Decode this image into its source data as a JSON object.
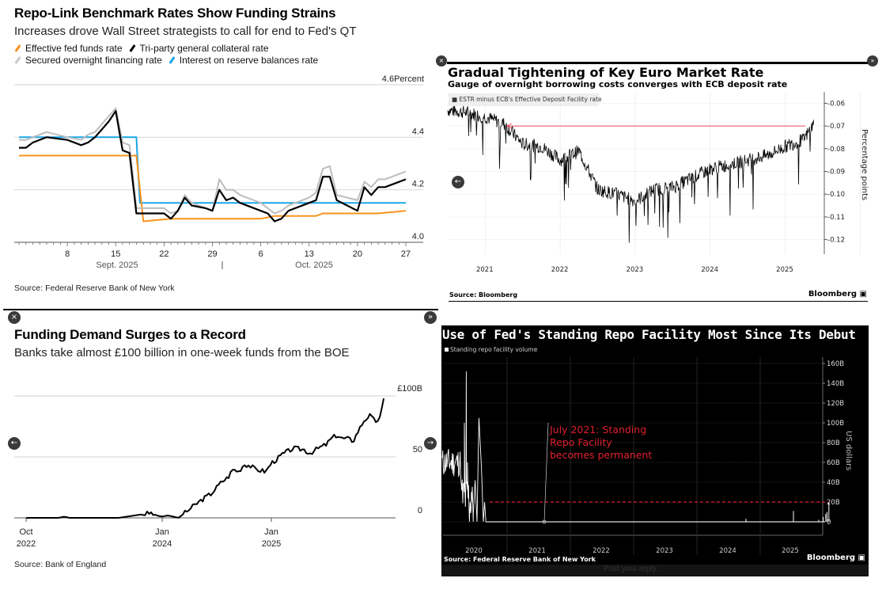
{
  "charts": {
    "repo": {
      "title": "Repo-Link Benchmark Rates Show Funding Strains",
      "subtitle": "Increases drove Wall Street strategists to call for end to Fed's QT",
      "source": "Source: Federal Reserve Bank of New York"
    },
    "euro": {
      "title": "Gradual Tightening of Key Euro Market Rate",
      "subtitle": "Gauge of overnight borrowing costs converges with ECB deposit rate",
      "legend": "ESTR minus ECB's Effective Deposit Facility rate",
      "source": "Source: Bloomberg",
      "brand": "Bloomberg"
    },
    "boe": {
      "title": "Funding Demand Surges to a Record",
      "subtitle": "Banks take almost £100 billion in one-week funds from the BOE",
      "source": "Source: Bank of England"
    },
    "srf": {
      "title": "Use of Fed's Standing Repo Facility Most Since Its Debut",
      "legend": "Standing repo facility volume",
      "source": "Source: Federal Reserve Bank of New York",
      "brand": "Bloomberg",
      "underlay_text": "Post your reply"
    }
  },
  "nav": {
    "close_icon": "×",
    "next_icon": "»",
    "left_arrow": "←",
    "right_arrow": "→"
  },
  "chart_data": [
    {
      "id": "repo",
      "type": "line",
      "title": "Repo-Link Benchmark Rates Show Funding Strains",
      "subtitle": "Increases drove Wall Street strategists to call for end to Fed's QT",
      "ylabel": "Percent",
      "ylim": [
        4.0,
        4.6
      ],
      "yticks": [
        4.0,
        4.2,
        4.4,
        4.6
      ],
      "ytick_labels": [
        "4.0",
        "4.2",
        "4.4",
        "4.6Percent"
      ],
      "xtick_labels": [
        "8",
        "15",
        "22",
        "29",
        "6",
        "13",
        "20",
        "27"
      ],
      "month_labels": [
        "Sept. 2025",
        "Oct. 2025"
      ],
      "x_day_index_range": [
        0,
        55
      ],
      "xtick_index": [
        7,
        14,
        21,
        28,
        35,
        42,
        49,
        56
      ],
      "grid": true,
      "legend_position": "top-left",
      "series": [
        {
          "name": "Effective fed funds rate",
          "color": "#f7931e",
          "x": [
            0,
            16,
            17,
            18,
            22,
            35,
            37,
            43,
            44,
            45,
            52,
            56
          ],
          "values": [
            4.33,
            4.33,
            4.33,
            4.08,
            4.09,
            4.09,
            4.1,
            4.1,
            4.11,
            4.11,
            4.11,
            4.12
          ]
        },
        {
          "name": "Tri-party general collateral rate",
          "color": "#000000",
          "x": [
            0,
            1,
            2,
            4,
            7,
            9,
            10,
            11,
            12,
            13,
            14,
            15,
            16,
            17,
            18,
            21,
            22,
            23,
            24,
            25,
            27,
            28,
            29,
            30,
            31,
            32,
            35,
            36,
            37,
            38,
            39,
            42,
            43,
            44,
            45,
            46,
            49,
            50,
            51,
            52,
            53,
            56
          ],
          "values": [
            4.36,
            4.36,
            4.38,
            4.4,
            4.39,
            4.37,
            4.38,
            4.4,
            4.43,
            4.46,
            4.5,
            4.35,
            4.34,
            4.11,
            4.11,
            4.11,
            4.09,
            4.12,
            4.17,
            4.14,
            4.13,
            4.12,
            4.2,
            4.16,
            4.17,
            4.15,
            4.12,
            4.11,
            4.08,
            4.09,
            4.12,
            4.15,
            4.16,
            4.25,
            4.25,
            4.16,
            4.12,
            4.21,
            4.18,
            4.21,
            4.21,
            4.24
          ]
        },
        {
          "name": "Secured overnight financing rate",
          "color": "#bdbdbd",
          "x": [
            0,
            1,
            2,
            4,
            7,
            9,
            10,
            11,
            12,
            13,
            14,
            15,
            16,
            17,
            18,
            21,
            22,
            23,
            24,
            25,
            27,
            28,
            29,
            30,
            31,
            32,
            35,
            36,
            37,
            38,
            39,
            42,
            43,
            44,
            45,
            46,
            49,
            50,
            51,
            52,
            53,
            56
          ],
          "values": [
            4.39,
            4.39,
            4.4,
            4.42,
            4.4,
            4.39,
            4.41,
            4.42,
            4.45,
            4.48,
            4.51,
            4.38,
            4.37,
            4.13,
            4.13,
            4.13,
            4.11,
            4.12,
            4.18,
            4.15,
            4.13,
            4.12,
            4.24,
            4.2,
            4.2,
            4.18,
            4.15,
            4.13,
            4.11,
            4.12,
            4.14,
            4.17,
            4.19,
            4.28,
            4.29,
            4.18,
            4.16,
            4.23,
            4.21,
            4.24,
            4.24,
            4.27
          ]
        },
        {
          "name": "Interest on reserve balances rate",
          "color": "#1ba6e6",
          "x": [
            0,
            17,
            17.5,
            56
          ],
          "values": [
            4.4,
            4.4,
            4.15,
            4.15
          ]
        }
      ],
      "source": "Source: Federal Reserve Bank of New York"
    },
    {
      "id": "euro",
      "type": "line",
      "title": "Gradual Tightening of Key Euro Market Rate",
      "subtitle": "Gauge of overnight borrowing costs converges with ECB deposit rate",
      "ylabel": "Percentage points",
      "ylim": [
        -0.125,
        -0.055
      ],
      "yticks": [
        -0.12,
        -0.11,
        -0.1,
        -0.09,
        -0.08,
        -0.07,
        -0.06
      ],
      "ytick_labels": [
        "-0.12",
        "-0.11",
        "-0.10",
        "-0.09",
        "-0.08",
        "-0.07",
        "-0.06"
      ],
      "xtick_labels": [
        "2021",
        "2022",
        "2023",
        "2024",
        "2025"
      ],
      "xlim": [
        2020.5,
        2025.5
      ],
      "series": [
        {
          "name": "ESTR minus ECB's Effective Deposit Facility rate",
          "color": "#000000",
          "x": [
            2020.5,
            2020.75,
            2021.0,
            2021.25,
            2021.5,
            2021.75,
            2022.0,
            2022.25,
            2022.5,
            2022.75,
            2023.0,
            2023.25,
            2023.5,
            2023.75,
            2024.0,
            2024.25,
            2024.5,
            2024.75,
            2025.0,
            2025.25,
            2025.38
          ],
          "values": [
            -0.063,
            -0.064,
            -0.066,
            -0.069,
            -0.078,
            -0.079,
            -0.085,
            -0.081,
            -0.098,
            -0.1,
            -0.103,
            -0.098,
            -0.097,
            -0.093,
            -0.089,
            -0.087,
            -0.085,
            -0.083,
            -0.079,
            -0.076,
            -0.069
          ]
        }
      ],
      "annotations": [
        {
          "type": "arrow",
          "from_x": 2025.35,
          "to_x": 2021.5,
          "y": -0.07,
          "color": "#e8485a"
        }
      ],
      "source": "Source: Bloomberg"
    },
    {
      "id": "boe",
      "type": "line",
      "title": "Funding Demand Surges to a Record",
      "subtitle": "Banks take almost £100 billion in one-week funds from the BOE",
      "ylim": [
        0,
        100
      ],
      "yticks": [
        0,
        50,
        100
      ],
      "ytick_labels": [
        "0",
        "50",
        "£100B"
      ],
      "xtick_labels": [
        "Oct\n2022",
        "Jan\n2024",
        "Jan\n2025"
      ],
      "xtick_pos": [
        2022.75,
        2024.0,
        2025.0
      ],
      "xlim": [
        2022.65,
        2026.2
      ],
      "series": [
        {
          "name": "One-week funds from BOE",
          "color": "#000000",
          "x": [
            2022.75,
            2023.05,
            2023.1,
            2023.15,
            2023.5,
            2023.6,
            2023.9,
            2023.95,
            2024.0,
            2024.05,
            2024.15,
            2024.25,
            2024.35,
            2024.45,
            2024.55,
            2024.6,
            2024.65,
            2024.7,
            2024.75,
            2024.8,
            2024.85,
            2024.95,
            2025.0,
            2025.05,
            2025.1,
            2025.2,
            2025.3,
            2025.35,
            2025.45,
            2025.5,
            2025.55,
            2025.6,
            2025.65,
            2025.7,
            2025.75,
            2025.8,
            2025.85,
            2025.9,
            2025.95,
            2026.0,
            2026.03
          ],
          "values": [
            0,
            0,
            1,
            0,
            0,
            0,
            4,
            2,
            1,
            2,
            0,
            7,
            14,
            20,
            30,
            33,
            40,
            38,
            44,
            43,
            40,
            38,
            45,
            48,
            52,
            57,
            56,
            53,
            58,
            60,
            65,
            68,
            65,
            65,
            63,
            72,
            80,
            84,
            79,
            82,
            98
          ]
        }
      ],
      "source": "Source: Bank of England"
    },
    {
      "id": "srf",
      "type": "line",
      "title": "Use of Fed's Standing Repo Facility Most Since Its Debut",
      "ylabel": "US dollars",
      "ylim": [
        -15,
        170
      ],
      "yticks": [
        0,
        20,
        40,
        60,
        80,
        100,
        120,
        140,
        160
      ],
      "ytick_labels": [
        "0",
        "20B",
        "40B",
        "60B",
        "80B",
        "100B",
        "120B",
        "140B",
        "160B"
      ],
      "xtick_labels": [
        "2020",
        "2021",
        "2022",
        "2023",
        "2024",
        "2025"
      ],
      "xlim": [
        2019.75,
        2025.75
      ],
      "series": [
        {
          "name": "Standing repo facility volume",
          "color": "#ffffff",
          "x": [
            2019.75,
            2019.8,
            2019.85,
            2019.9,
            2019.93,
            2019.95,
            2019.97,
            2020.0,
            2020.05,
            2020.1,
            2020.15,
            2020.2,
            2020.22,
            2020.25,
            2020.27,
            2020.3,
            2021.0,
            2024.3,
            2024.31,
            2024.32,
            2025.05,
            2025.06,
            2025.07,
            2025.5,
            2025.55,
            2025.58,
            2025.6,
            2025.62
          ],
          "values": [
            75,
            50,
            65,
            100,
            152,
            40,
            0,
            40,
            0,
            105,
            55,
            0,
            20,
            0,
            0,
            0,
            0,
            0,
            3,
            0,
            0,
            11,
            0,
            0,
            5,
            8,
            10,
            20
          ]
        }
      ],
      "annotations": [
        {
          "type": "text",
          "text": "July 2021: Standing Repo Facility becomes permanent",
          "color": "#e0202e",
          "x": 2021.54,
          "y": 0
        },
        {
          "type": "hline",
          "y": 20,
          "style": "dashed",
          "color": "#e0202e"
        }
      ],
      "source": "Source: Federal Reserve Bank of New York"
    }
  ]
}
